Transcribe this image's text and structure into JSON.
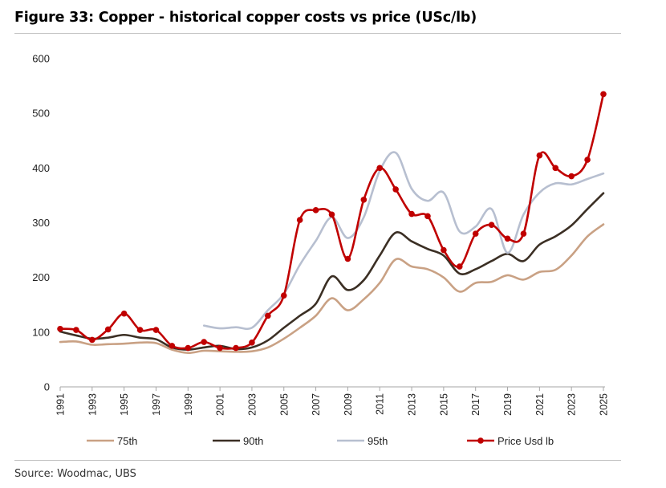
{
  "figure": {
    "title": "Figure 33: Copper - historical copper costs vs price (USc/lb)",
    "source": "Source: Woodmac, UBS"
  },
  "chart_data": {
    "type": "line",
    "title": "Figure 33: Copper - historical copper costs vs price (USc/lb)",
    "xlabel": "",
    "ylabel": "",
    "xlim": [
      1991,
      2025
    ],
    "ylim": [
      0,
      600
    ],
    "y_ticks": [
      0,
      100,
      200,
      300,
      400,
      500,
      600
    ],
    "y_tick_labels": [
      "0",
      "100",
      "200",
      "300",
      "400",
      "500",
      "600"
    ],
    "x_ticks": [
      1991,
      1993,
      1995,
      1997,
      1999,
      2001,
      2003,
      2005,
      2007,
      2009,
      2011,
      2013,
      2015,
      2017,
      2019,
      2021,
      2023,
      2025
    ],
    "x_tick_labels": [
      "1991",
      "1993",
      "1995",
      "1997",
      "1999",
      "2001",
      "2003",
      "2005",
      "2007",
      "2009",
      "2011",
      "2013",
      "2015",
      "2017",
      "2019",
      "2021",
      "2023",
      "2025"
    ],
    "grid": false,
    "legend_position": "bottom",
    "series": [
      {
        "name": "75th",
        "color": "#c9a184",
        "markers": false,
        "x": [
          1991,
          1992,
          1993,
          1994,
          1995,
          1996,
          1997,
          1998,
          1999,
          2000,
          2001,
          2002,
          2003,
          2004,
          2005,
          2006,
          2007,
          2008,
          2009,
          2010,
          2011,
          2012,
          2013,
          2014,
          2015,
          2016,
          2017,
          2018,
          2019,
          2020,
          2021,
          2022,
          2023,
          2024,
          2025
        ],
        "values": [
          82,
          83,
          77,
          78,
          79,
          81,
          80,
          68,
          62,
          66,
          65,
          64,
          65,
          72,
          88,
          108,
          130,
          162,
          140,
          160,
          190,
          233,
          220,
          215,
          200,
          174,
          190,
          192,
          204,
          196,
          210,
          214,
          240,
          275,
          297
        ]
      },
      {
        "name": "90th",
        "color": "#3b2f24",
        "markers": false,
        "x": [
          1991,
          1992,
          1993,
          1994,
          1995,
          1996,
          1997,
          1998,
          1999,
          2000,
          2001,
          2002,
          2003,
          2004,
          2005,
          2006,
          2007,
          2008,
          2009,
          2010,
          2011,
          2012,
          2013,
          2014,
          2015,
          2016,
          2017,
          2018,
          2019,
          2020,
          2021,
          2022,
          2023,
          2024,
          2025
        ],
        "values": [
          101,
          94,
          88,
          90,
          95,
          90,
          87,
          72,
          68,
          72,
          75,
          69,
          72,
          85,
          108,
          130,
          152,
          202,
          177,
          195,
          240,
          282,
          266,
          252,
          240,
          207,
          215,
          230,
          243,
          230,
          260,
          275,
          295,
          325,
          354
        ]
      },
      {
        "name": "95th",
        "color": "#b7bfd0",
        "markers": false,
        "x": [
          2000,
          2001,
          2002,
          2003,
          2004,
          2005,
          2006,
          2007,
          2008,
          2009,
          2010,
          2011,
          2012,
          2013,
          2014,
          2015,
          2016,
          2017,
          2018,
          2019,
          2020,
          2021,
          2022,
          2023,
          2024,
          2025
        ],
        "values": [
          112,
          107,
          109,
          108,
          140,
          170,
          223,
          267,
          310,
          272,
          310,
          395,
          428,
          362,
          340,
          355,
          284,
          293,
          325,
          245,
          315,
          355,
          372,
          370,
          380,
          390
        ]
      },
      {
        "name": "Price Usd lb",
        "color": "#c00000",
        "markers": true,
        "x": [
          1991,
          1992,
          1993,
          1994,
          1995,
          1996,
          1997,
          1998,
          1999,
          2000,
          2001,
          2002,
          2003,
          2004,
          2005,
          2006,
          2007,
          2008,
          2009,
          2010,
          2011,
          2012,
          2013,
          2014,
          2015,
          2016,
          2017,
          2018,
          2019,
          2020,
          2021,
          2022,
          2023,
          2024,
          2025
        ],
        "values": [
          106,
          104,
          86,
          105,
          134,
          104,
          104,
          75,
          71,
          82,
          71,
          71,
          81,
          130,
          167,
          305,
          323,
          315,
          234,
          342,
          400,
          361,
          316,
          312,
          250,
          220,
          280,
          296,
          271,
          280,
          423,
          400,
          385,
          415,
          535
        ]
      }
    ]
  }
}
